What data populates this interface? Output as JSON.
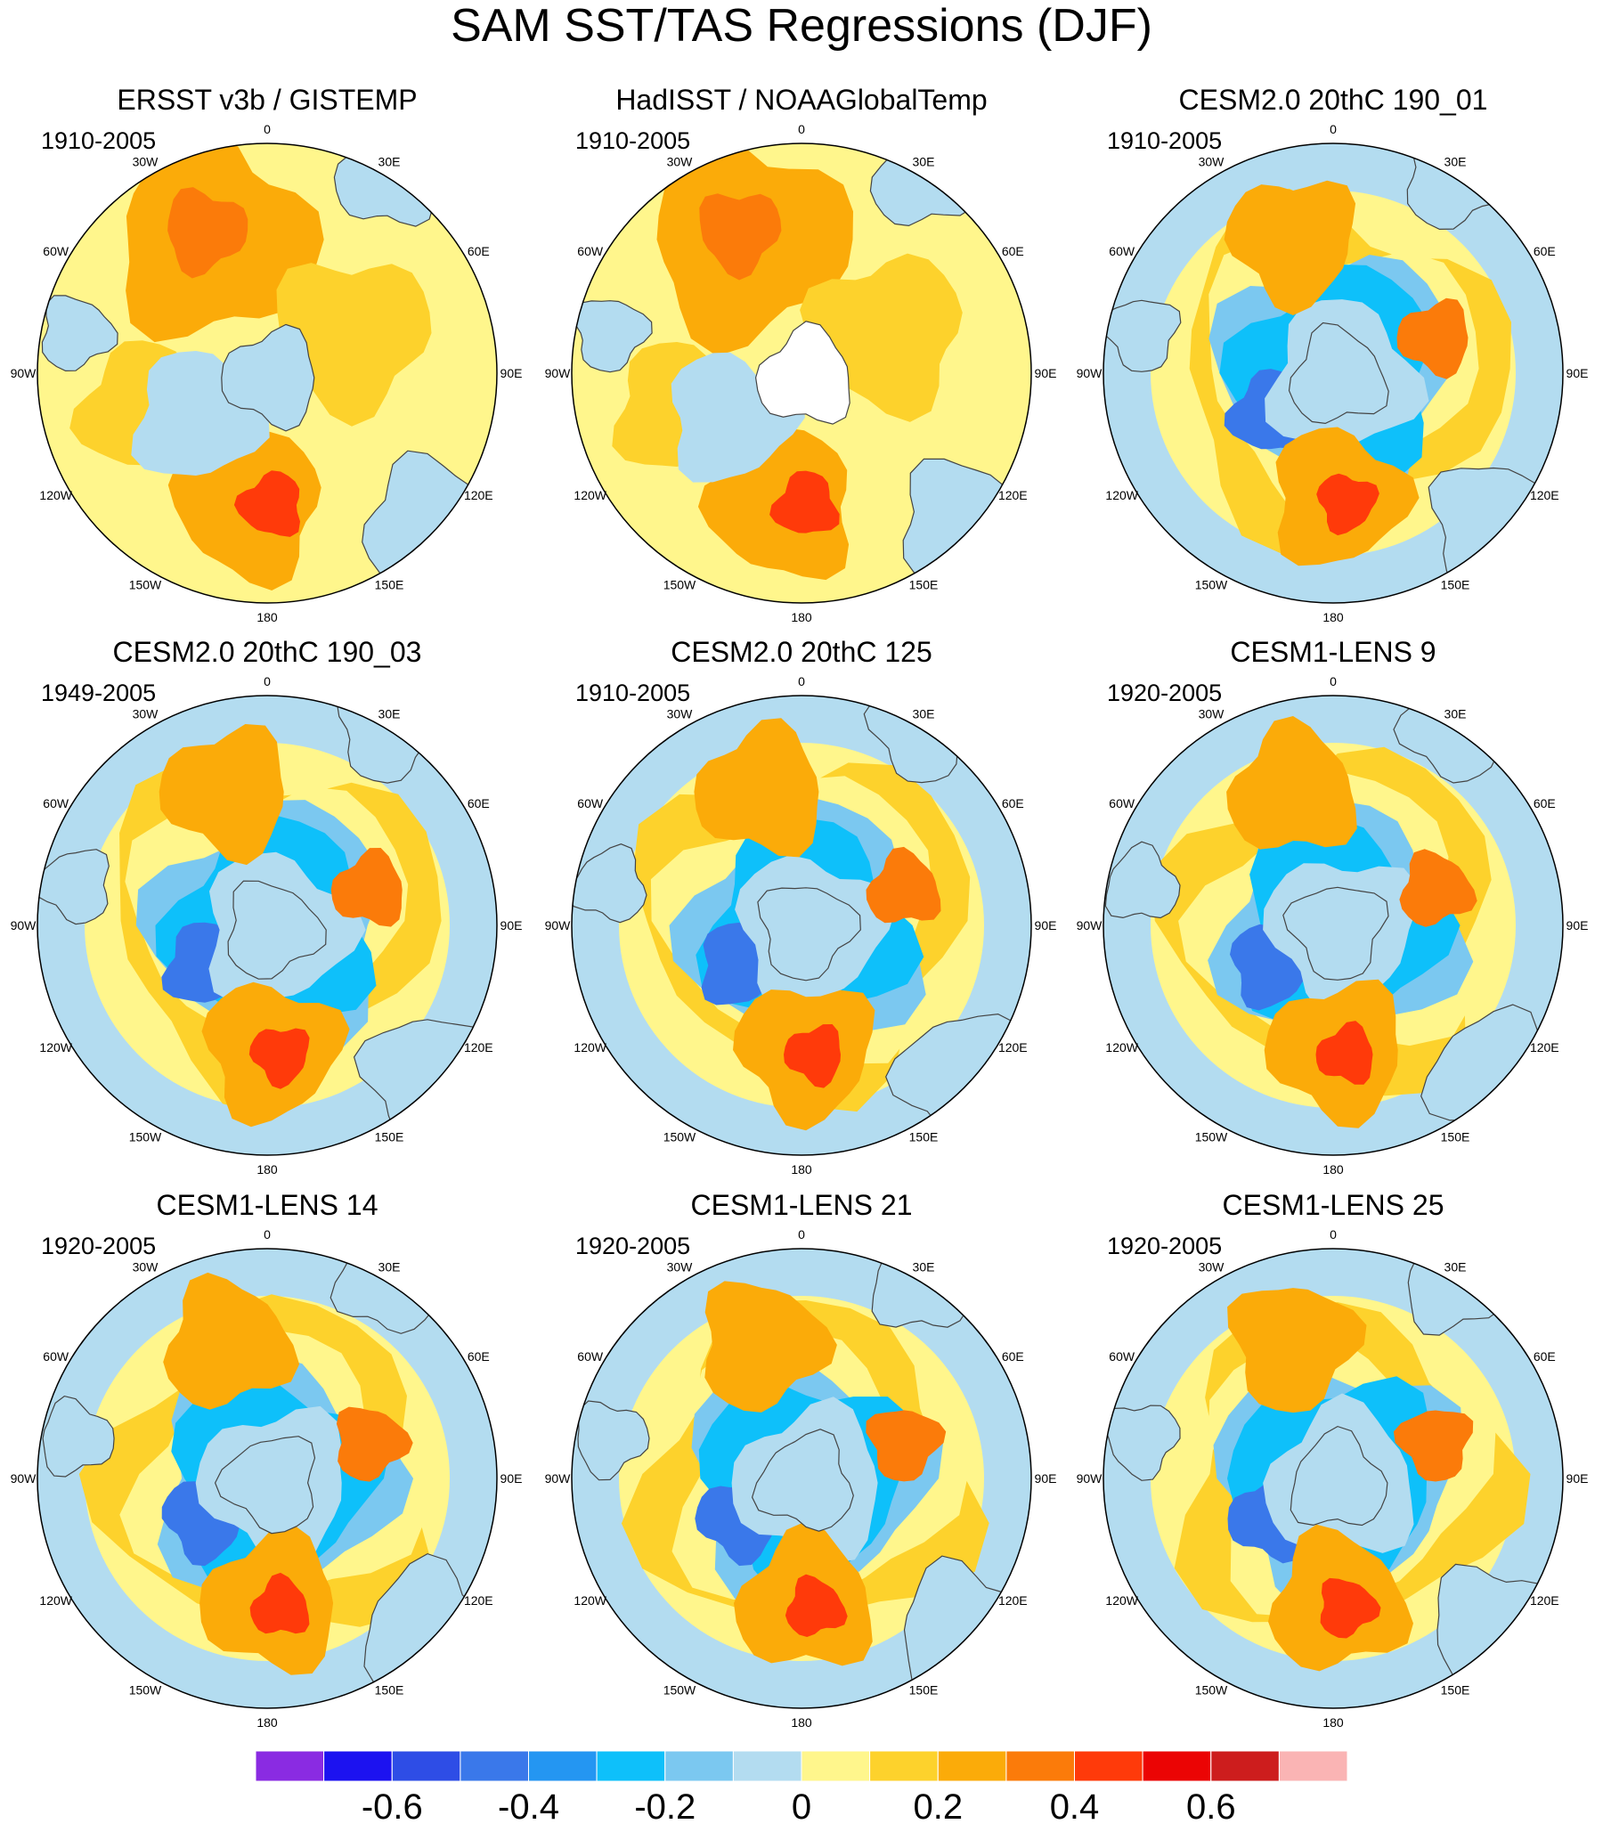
{
  "chart_data": {
    "type": "polar-contour-map",
    "title": "SAM SST/TAS Regressions (DJF)",
    "projection": "south-polar-stereographic",
    "longitude_labels": [
      "0",
      "30E",
      "60E",
      "90E",
      "120E",
      "150E",
      "180",
      "150W",
      "120W",
      "90W",
      "60W",
      "30W"
    ],
    "colorbar": {
      "levels": [
        -0.7,
        -0.6,
        -0.5,
        -0.4,
        -0.3,
        -0.2,
        -0.1,
        0,
        0.1,
        0.2,
        0.3,
        0.4,
        0.5,
        0.6,
        0.7
      ],
      "tick_values": [
        -0.6,
        -0.4,
        -0.2,
        0,
        0.2,
        0.4,
        0.6
      ],
      "tick_labels": [
        "-0.6",
        "-0.4",
        "-0.2",
        "0",
        "0.2",
        "0.4",
        "0.6"
      ],
      "colors": [
        "#8a2be2",
        "#1c12f0",
        "#2e4de6",
        "#3a78ea",
        "#2496f2",
        "#0ec0fa",
        "#7bc8f0",
        "#b3dcf0",
        "#fff68c",
        "#fdd22c",
        "#fbab09",
        "#fb7b0a",
        "#ff3a0a",
        "#eb0404",
        "#cd1d1d",
        "#fab4b4"
      ]
    },
    "panels": [
      {
        "title": "ERSST v3b / GISTEMP",
        "period": "1910-2005"
      },
      {
        "title": "HadISST / NOAAGlobalTemp",
        "period": "1910-2005"
      },
      {
        "title": "CESM2.0 20thC 190_01",
        "period": "1910-2005"
      },
      {
        "title": "CESM2.0 20thC 190_03",
        "period": "1949-2005"
      },
      {
        "title": "CESM2.0 20thC 125",
        "period": "1910-2005"
      },
      {
        "title": "CESM1-LENS 9",
        "period": "1920-2005"
      },
      {
        "title": "CESM1-LENS 14",
        "period": "1920-2005"
      },
      {
        "title": "CESM1-LENS 21",
        "period": "1920-2005"
      },
      {
        "title": "CESM1-LENS 25",
        "period": "1920-2005"
      }
    ]
  }
}
